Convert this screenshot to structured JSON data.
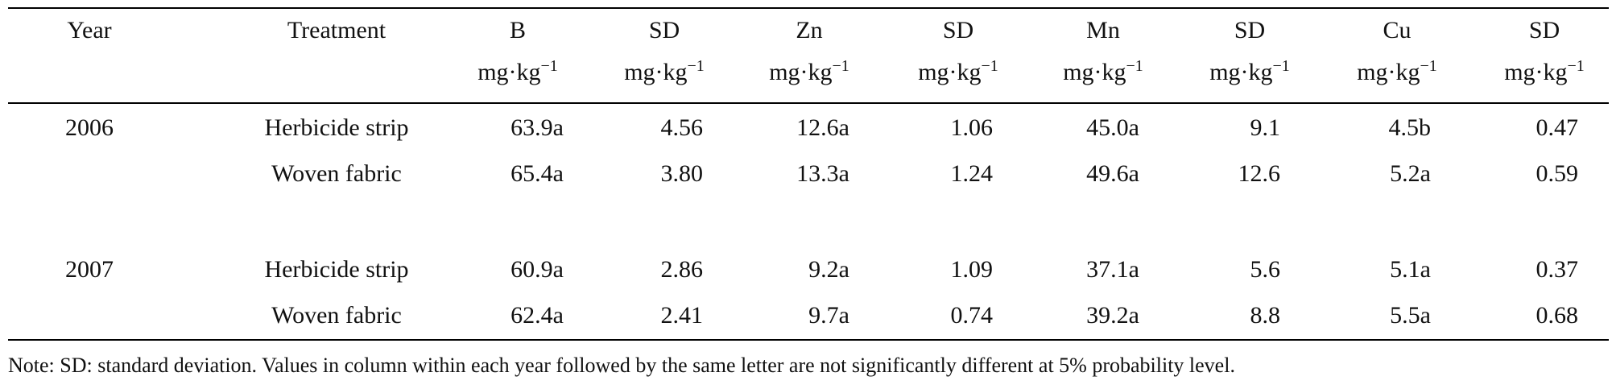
{
  "table": {
    "headers": [
      "Year",
      "Treatment",
      "B",
      "SD",
      "Zn",
      "SD",
      "Mn",
      "SD",
      "Cu",
      "SD"
    ],
    "unit_base": "mg·kg",
    "unit_exp": "−1",
    "rows": [
      [
        "2006",
        "Herbicide strip",
        "63.9a",
        "4.56",
        "12.6a",
        "1.06",
        "45.0a",
        "9.1",
        "4.5b",
        "0.47"
      ],
      [
        "",
        "Woven fabric",
        "65.4a",
        "3.80",
        "13.3a",
        "1.24",
        "49.6a",
        "12.6",
        "5.2a",
        "0.59"
      ],
      [
        "2007",
        "Herbicide strip",
        "60.9a",
        "2.86",
        "9.2a",
        "1.09",
        "37.1a",
        "5.6",
        "5.1a",
        "0.37"
      ],
      [
        "",
        "Woven fabric",
        "62.4a",
        "2.41",
        "9.7a",
        "0.74",
        "39.2a",
        "8.8",
        "5.5a",
        "0.68"
      ]
    ]
  },
  "note": "Note: SD: standard deviation. Values in column within each year followed by the same letter are not significantly different at 5% probability level."
}
